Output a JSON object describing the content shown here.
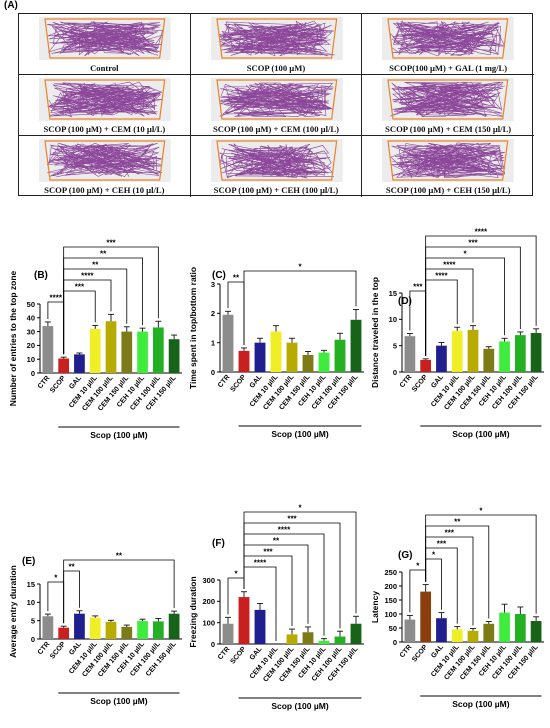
{
  "panel_a": {
    "letter": "(A)",
    "tracks": [
      {
        "label": "Control"
      },
      {
        "label": "SCOP (100 µM)"
      },
      {
        "label": "SCOP(100 µM) + GAL (1 mg/L)"
      },
      {
        "label": "SCOP (100 µM) + CEM (10 µl/L)"
      },
      {
        "label": "SCOP (100 µM) + CEM (100 µl/L)"
      },
      {
        "label": "SCOP (100 µM) + CEM (150 µl/L)"
      },
      {
        "label": "SCOP (100 µM) + CEH (10 µl/L)"
      },
      {
        "label": "SCOP (100 µM) + CEH (100 µl/L)"
      },
      {
        "label": "SCOP (100 µM) + CEH (150 µl/L)"
      }
    ],
    "track_color": "#7b2a8c",
    "tank_color": "#e8832a"
  },
  "chart_data": [
    {
      "panel": "(B)",
      "type": "bar",
      "categories": [
        "CTR",
        "SCOP",
        "GAL",
        "CEM 10 µl/L",
        "CEM 100 µl/L",
        "CEM 150 µl/L",
        "CEH 10 µl/L",
        "CEH 100 µl/L",
        "CEH 150 µl/L"
      ],
      "values": [
        34,
        10.5,
        13.5,
        32,
        37.5,
        30,
        30,
        33,
        24.5
      ],
      "errors": [
        3,
        1,
        1,
        2.5,
        5,
        3.5,
        2.5,
        4.5,
        3
      ],
      "colors": [
        "#8c8c8c",
        "#c9201f",
        "#1f1f8f",
        "#f0ef26",
        "#b8ab00",
        "#7d7a18",
        "#3eec3e",
        "#23b023",
        "#17631a"
      ],
      "ylabel": "Number of entries to the top zone",
      "ylim": [
        0,
        50
      ],
      "yticks": [
        0,
        10,
        20,
        30,
        40,
        50
      ],
      "group_label": "Scop (100 µM)",
      "significance": [
        {
          "from": 0,
          "to": 1,
          "label": "****"
        },
        {
          "from": 1,
          "to": 3,
          "label": "***"
        },
        {
          "from": 1,
          "to": 4,
          "label": "****"
        },
        {
          "from": 1,
          "to": 5,
          "label": "**"
        },
        {
          "from": 1,
          "to": 6,
          "label": "**"
        },
        {
          "from": 1,
          "to": 7,
          "label": "***"
        }
      ]
    },
    {
      "panel": "(C)",
      "type": "bar",
      "categories": [
        "CTR",
        "SCOP",
        "GAL",
        "CEM 10 µl/L",
        "CEM 100 µl/L",
        "CEM 150 µl/L",
        "CEH 10 µl/L",
        "CEH 100 µl/L",
        "CEH 150 µl/L"
      ],
      "values": [
        1.95,
        0.72,
        1.0,
        1.38,
        1.0,
        0.58,
        0.66,
        1.1,
        1.78
      ],
      "errors": [
        0.12,
        0.1,
        0.15,
        0.2,
        0.15,
        0.12,
        0.08,
        0.22,
        0.35
      ],
      "colors": [
        "#8c8c8c",
        "#c9201f",
        "#1f1f8f",
        "#f0ef26",
        "#b8ab00",
        "#7d7a18",
        "#3eec3e",
        "#23b023",
        "#17631a"
      ],
      "ylabel": "Time spent in top/bottom ratio",
      "ylim": [
        0,
        3
      ],
      "yticks": [
        0,
        1,
        2,
        3
      ],
      "group_label": "Scop (100 µM)",
      "significance": [
        {
          "from": 0,
          "to": 1,
          "label": "**"
        },
        {
          "from": 1,
          "to": 8,
          "label": "*"
        }
      ]
    },
    {
      "panel": "(D)",
      "type": "bar",
      "categories": [
        "CTR",
        "SCOP",
        "GAL",
        "CEM 10 µl/L",
        "CEM 100 µl/L",
        "CEM 150 µl/L",
        "CEH 10 µl/L",
        "CEH 100 µl/L",
        "CEH 150 µl/L"
      ],
      "values": [
        6.8,
        2.3,
        5.0,
        7.8,
        8.0,
        4.4,
        5.8,
        7.0,
        7.4
      ],
      "errors": [
        0.5,
        0.2,
        0.6,
        0.7,
        0.8,
        0.4,
        0.6,
        0.6,
        0.8
      ],
      "colors": [
        "#8c8c8c",
        "#c9201f",
        "#1f1f8f",
        "#f0ef26",
        "#b8ab00",
        "#7d7a18",
        "#3eec3e",
        "#23b023",
        "#17631a"
      ],
      "ylabel": "Distance traveled in the top",
      "ylim": [
        0,
        15
      ],
      "yticks": [
        0,
        5,
        10,
        15
      ],
      "group_label": "Scop (100 µM)",
      "significance": [
        {
          "from": 0,
          "to": 1,
          "label": "***"
        },
        {
          "from": 1,
          "to": 3,
          "label": "****"
        },
        {
          "from": 1,
          "to": 4,
          "label": "****"
        },
        {
          "from": 1,
          "to": 6,
          "label": "*"
        },
        {
          "from": 1,
          "to": 7,
          "label": "***"
        },
        {
          "from": 1,
          "to": 8,
          "label": "****"
        }
      ]
    },
    {
      "panel": "(E)",
      "type": "bar",
      "categories": [
        "CTR",
        "SCOP",
        "GAL",
        "CEM 10 µl/L",
        "CEM 100 µl/L",
        "CEM 150 µl/L",
        "CEH 10 µl/L",
        "CEH 100 µl/L",
        "CEH 150 µl/L"
      ],
      "values": [
        6.2,
        3.1,
        6.9,
        5.8,
        4.7,
        3.3,
        4.9,
        4.8,
        6.9
      ],
      "errors": [
        0.6,
        0.4,
        0.8,
        0.5,
        0.4,
        0.5,
        0.5,
        0.8,
        0.7
      ],
      "colors": [
        "#8c8c8c",
        "#c9201f",
        "#1f1f8f",
        "#f0ef26",
        "#b8ab00",
        "#7d7a18",
        "#3eec3e",
        "#23b023",
        "#17631a"
      ],
      "ylabel": "Average entry duration",
      "ylim": [
        0,
        15
      ],
      "yticks": [
        0,
        5,
        10,
        15
      ],
      "group_label": "Scop (100 µM)",
      "significance": [
        {
          "from": 0,
          "to": 1,
          "label": "*"
        },
        {
          "from": 1,
          "to": 2,
          "label": "**"
        },
        {
          "from": 1,
          "to": 8,
          "label": "**"
        }
      ]
    },
    {
      "panel": "(F)",
      "type": "bar",
      "categories": [
        "CTR",
        "SCOP",
        "GAL",
        "CEM 10 µl/L",
        "CEM 100 µl/L",
        "CEM 150 µl/L",
        "CEH 10 µl/L",
        "CEH 100 µl/L",
        "CEH 150 µl/L"
      ],
      "values": [
        95,
        220,
        160,
        0,
        45,
        55,
        15,
        35,
        95
      ],
      "errors": [
        30,
        25,
        30,
        0,
        25,
        25,
        10,
        25,
        35
      ],
      "colors": [
        "#8c8c8c",
        "#c9201f",
        "#1f1f8f",
        "#f0ef26",
        "#b8ab00",
        "#7d7a18",
        "#3eec3e",
        "#23b023",
        "#17631a"
      ],
      "ylabel": "Freezing duration",
      "ylim": [
        0,
        300
      ],
      "yticks": [
        0,
        100,
        200,
        300
      ],
      "group_label": "Scop (100 µM)",
      "significance": [
        {
          "from": 0,
          "to": 1,
          "label": "*"
        },
        {
          "from": 1,
          "to": 3,
          "label": "****"
        },
        {
          "from": 1,
          "to": 4,
          "label": "***"
        },
        {
          "from": 1,
          "to": 5,
          "label": "**"
        },
        {
          "from": 1,
          "to": 6,
          "label": "****"
        },
        {
          "from": 1,
          "to": 7,
          "label": "***"
        },
        {
          "from": 1,
          "to": 8,
          "label": "*"
        }
      ]
    },
    {
      "panel": "(G)",
      "type": "bar",
      "categories": [
        "CTR",
        "SCOP",
        "GAL",
        "CEM 10 µl/L",
        "CEM 100 µl/L",
        "CEM 150 µl/L",
        "CEH 10 µl/L",
        "CEH 100 µl/L",
        "CEH 150 µl/L"
      ],
      "values": [
        80,
        180,
        85,
        45,
        40,
        65,
        105,
        100,
        75
      ],
      "errors": [
        15,
        25,
        20,
        10,
        8,
        8,
        30,
        25,
        15
      ],
      "colors": [
        "#8c8c8c",
        "#8a3e0b",
        "#1f1f8f",
        "#f0ef26",
        "#b8ab00",
        "#7d7a18",
        "#3eec3e",
        "#23b023",
        "#17631a"
      ],
      "ylabel": "Latency",
      "ylim": [
        0,
        250
      ],
      "yticks": [
        0,
        50,
        100,
        150,
        200,
        250
      ],
      "group_label": "Scop (100 µM)",
      "significance": [
        {
          "from": 0,
          "to": 1,
          "label": "*"
        },
        {
          "from": 1,
          "to": 2,
          "label": "*"
        },
        {
          "from": 1,
          "to": 3,
          "label": "***"
        },
        {
          "from": 1,
          "to": 4,
          "label": "***"
        },
        {
          "from": 1,
          "to": 5,
          "label": "**"
        },
        {
          "from": 1,
          "to": 8,
          "label": "*"
        }
      ]
    }
  ]
}
